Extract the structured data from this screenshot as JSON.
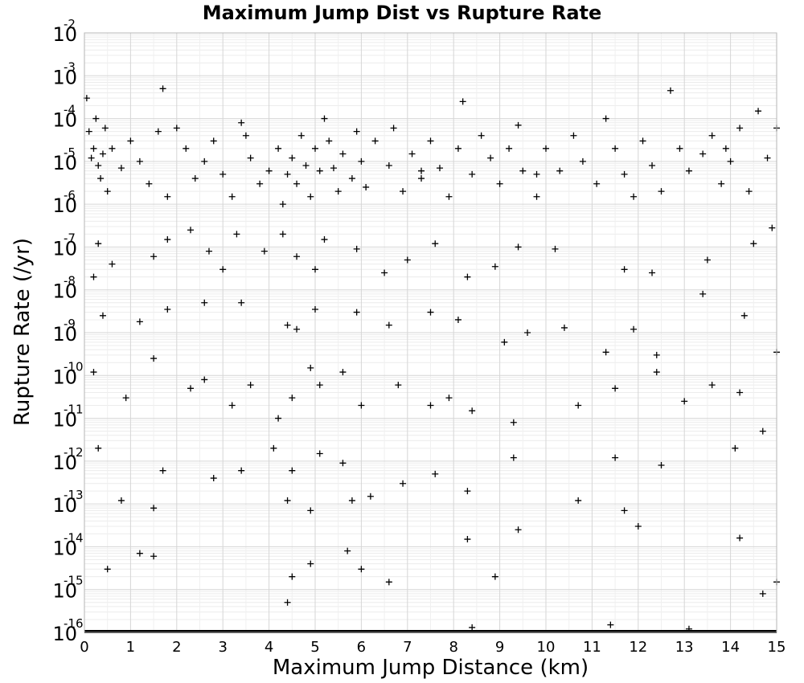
{
  "chart_data": {
    "type": "scatter",
    "title": "Maximum Jump Dist vs Rupture Rate",
    "xlabel": "Maximum Jump Distance (km)",
    "ylabel": "Rupture Rate (/yr)",
    "x_scale": "linear",
    "y_scale": "log",
    "xlim": [
      0,
      15
    ],
    "ylim": [
      1e-16,
      0.01
    ],
    "xticks": [
      0,
      1,
      2,
      3,
      4,
      5,
      6,
      7,
      8,
      9,
      10,
      11,
      12,
      13,
      14,
      15
    ],
    "yticks": [
      -16,
      -15,
      -14,
      -13,
      -12,
      -11,
      -10,
      -9,
      -8,
      -7,
      -6,
      -5,
      -4,
      -3,
      -2
    ],
    "ytick_base": "10",
    "grid": true,
    "marker": "+",
    "series": [
      {
        "points": [
          [
            0.05,
            0.0003
          ],
          [
            0.1,
            5e-05
          ],
          [
            0.15,
            1.2e-05
          ],
          [
            0.2,
            2e-05
          ],
          [
            0.25,
            0.0001
          ],
          [
            0.3,
            8e-06
          ],
          [
            0.35,
            4e-06
          ],
          [
            0.4,
            1.5e-05
          ],
          [
            0.45,
            6e-05
          ],
          [
            0.5,
            2e-06
          ],
          [
            0.6,
            2e-05
          ],
          [
            0.8,
            7e-06
          ],
          [
            1.0,
            3e-05
          ],
          [
            1.2,
            1e-05
          ],
          [
            1.4,
            3e-06
          ],
          [
            1.6,
            5e-05
          ],
          [
            1.7,
            0.0005
          ],
          [
            1.8,
            1.5e-06
          ],
          [
            2.0,
            6e-05
          ],
          [
            2.2,
            2e-05
          ],
          [
            2.4,
            4e-06
          ],
          [
            2.6,
            1e-05
          ],
          [
            2.8,
            3e-05
          ],
          [
            3.0,
            5e-06
          ],
          [
            3.2,
            1.5e-06
          ],
          [
            3.4,
            8e-05
          ],
          [
            3.5,
            4e-05
          ],
          [
            3.6,
            1.2e-05
          ],
          [
            3.8,
            3e-06
          ],
          [
            4.0,
            6e-06
          ],
          [
            4.2,
            2e-05
          ],
          [
            4.3,
            1e-06
          ],
          [
            4.4,
            5e-06
          ],
          [
            4.5,
            1.2e-05
          ],
          [
            4.6,
            3e-06
          ],
          [
            4.7,
            4e-05
          ],
          [
            4.8,
            8e-06
          ],
          [
            4.9,
            1.5e-06
          ],
          [
            5.0,
            2e-05
          ],
          [
            5.1,
            6e-06
          ],
          [
            5.2,
            0.0001
          ],
          [
            5.3,
            3e-05
          ],
          [
            5.4,
            7e-06
          ],
          [
            5.5,
            2e-06
          ],
          [
            5.6,
            1.5e-05
          ],
          [
            5.8,
            4e-06
          ],
          [
            5.9,
            5e-05
          ],
          [
            6.0,
            1e-05
          ],
          [
            6.1,
            2.5e-06
          ],
          [
            6.3,
            3e-05
          ],
          [
            6.6,
            8e-06
          ],
          [
            6.7,
            6e-05
          ],
          [
            6.9,
            2e-06
          ],
          [
            7.1,
            1.5e-05
          ],
          [
            7.3,
            4e-06
          ],
          [
            7.5,
            3e-05
          ],
          [
            7.7,
            7e-06
          ],
          [
            7.9,
            1.5e-06
          ],
          [
            8.1,
            2e-05
          ],
          [
            8.2,
            0.00025
          ],
          [
            8.4,
            5e-06
          ],
          [
            8.6,
            4e-05
          ],
          [
            8.8,
            1.2e-05
          ],
          [
            9.0,
            3e-06
          ],
          [
            9.2,
            2e-05
          ],
          [
            9.4,
            7e-05
          ],
          [
            9.5,
            6e-06
          ],
          [
            9.8,
            1.5e-06
          ],
          [
            10.0,
            2e-05
          ],
          [
            10.3,
            6e-06
          ],
          [
            10.6,
            4e-05
          ],
          [
            10.8,
            1e-05
          ],
          [
            11.1,
            3e-06
          ],
          [
            11.3,
            0.0001
          ],
          [
            11.5,
            2e-05
          ],
          [
            11.7,
            5e-06
          ],
          [
            11.9,
            1.5e-06
          ],
          [
            12.1,
            3e-05
          ],
          [
            12.3,
            8e-06
          ],
          [
            12.5,
            2e-06
          ],
          [
            12.7,
            0.00045
          ],
          [
            12.9,
            2e-05
          ],
          [
            13.1,
            6e-06
          ],
          [
            13.4,
            1.5e-05
          ],
          [
            13.6,
            4e-05
          ],
          [
            13.8,
            3e-06
          ],
          [
            14.0,
            1e-05
          ],
          [
            14.2,
            6e-05
          ],
          [
            14.4,
            2e-06
          ],
          [
            14.6,
            0.00015
          ],
          [
            14.8,
            1.2e-05
          ],
          [
            15.0,
            6e-05
          ],
          [
            0.3,
            1.2e-07
          ],
          [
            0.6,
            4e-08
          ],
          [
            1.5,
            6e-08
          ],
          [
            1.8,
            1.5e-07
          ],
          [
            2.3,
            2.5e-07
          ],
          [
            2.7,
            8e-08
          ],
          [
            3.0,
            3e-08
          ],
          [
            3.3,
            2e-07
          ],
          [
            3.9,
            8e-08
          ],
          [
            4.3,
            2e-07
          ],
          [
            4.6,
            6e-08
          ],
          [
            5.0,
            3e-08
          ],
          [
            5.2,
            1.5e-07
          ],
          [
            5.9,
            9e-08
          ],
          [
            6.5,
            2.5e-08
          ],
          [
            7.0,
            5e-08
          ],
          [
            7.6,
            1.2e-07
          ],
          [
            8.3,
            2e-08
          ],
          [
            8.9,
            3.5e-08
          ],
          [
            9.4,
            1e-07
          ],
          [
            10.2,
            9e-08
          ],
          [
            11.7,
            3e-08
          ],
          [
            12.3,
            2.5e-08
          ],
          [
            13.5,
            5e-08
          ],
          [
            14.5,
            1.2e-07
          ],
          [
            14.9,
            2.8e-07
          ],
          [
            0.2,
            2e-08
          ],
          [
            0.4,
            2.5e-09
          ],
          [
            1.2,
            1.8e-09
          ],
          [
            1.8,
            3.5e-09
          ],
          [
            2.6,
            5e-09
          ],
          [
            3.4,
            5e-09
          ],
          [
            4.4,
            1.5e-09
          ],
          [
            4.6,
            1.2e-09
          ],
          [
            5.0,
            3.5e-09
          ],
          [
            5.9,
            3e-09
          ],
          [
            6.6,
            1.5e-09
          ],
          [
            7.5,
            3e-09
          ],
          [
            8.1,
            2e-09
          ],
          [
            9.1,
            6e-10
          ],
          [
            9.6,
            1e-09
          ],
          [
            10.4,
            1.3e-09
          ],
          [
            11.3,
            3.5e-10
          ],
          [
            11.9,
            1.2e-09
          ],
          [
            12.4,
            3e-10
          ],
          [
            13.4,
            8e-09
          ],
          [
            14.3,
            2.5e-09
          ],
          [
            15.0,
            3.5e-10
          ],
          [
            0.2,
            1.2e-10
          ],
          [
            0.9,
            3e-11
          ],
          [
            1.5,
            2.5e-10
          ],
          [
            2.3,
            5e-11
          ],
          [
            2.6,
            8e-11
          ],
          [
            3.2,
            2e-11
          ],
          [
            3.6,
            6e-11
          ],
          [
            4.2,
            1e-11
          ],
          [
            4.5,
            3e-11
          ],
          [
            4.9,
            1.5e-10
          ],
          [
            5.1,
            6e-11
          ],
          [
            5.6,
            1.2e-10
          ],
          [
            6.0,
            2e-11
          ],
          [
            6.8,
            6e-11
          ],
          [
            7.5,
            2e-11
          ],
          [
            7.9,
            3e-11
          ],
          [
            8.4,
            1.5e-11
          ],
          [
            9.3,
            8e-12
          ],
          [
            10.7,
            2e-11
          ],
          [
            11.5,
            5e-11
          ],
          [
            12.4,
            1.2e-10
          ],
          [
            13.0,
            2.5e-11
          ],
          [
            13.6,
            6e-11
          ],
          [
            14.2,
            4e-11
          ],
          [
            14.7,
            5e-12
          ],
          [
            0.3,
            2e-12
          ],
          [
            1.7,
            6e-13
          ],
          [
            2.8,
            4e-13
          ],
          [
            3.4,
            6e-13
          ],
          [
            4.1,
            2e-12
          ],
          [
            4.5,
            6e-13
          ],
          [
            5.1,
            1.5e-12
          ],
          [
            5.6,
            9e-13
          ],
          [
            6.2,
            1.5e-13
          ],
          [
            6.9,
            3e-13
          ],
          [
            7.6,
            5e-13
          ],
          [
            8.3,
            2e-13
          ],
          [
            9.3,
            1.2e-12
          ],
          [
            11.5,
            1.2e-12
          ],
          [
            12.5,
            8e-13
          ],
          [
            14.1,
            2e-12
          ],
          [
            0.8,
            1.2e-13
          ],
          [
            1.5,
            8e-14
          ],
          [
            4.4,
            1.2e-13
          ],
          [
            4.9,
            7e-14
          ],
          [
            5.8,
            1.2e-13
          ],
          [
            8.3,
            1.5e-14
          ],
          [
            9.4,
            2.5e-14
          ],
          [
            10.7,
            1.2e-13
          ],
          [
            11.7,
            7e-14
          ],
          [
            12.0,
            3e-14
          ],
          [
            14.2,
            1.6e-14
          ],
          [
            0.5,
            3e-15
          ],
          [
            1.2,
            7e-15
          ],
          [
            1.5,
            6e-15
          ],
          [
            4.9,
            4e-15
          ],
          [
            5.7,
            8e-15
          ],
          [
            6.0,
            3e-15
          ],
          [
            4.5,
            2e-15
          ],
          [
            6.6,
            1.5e-15
          ],
          [
            8.9,
            2e-15
          ],
          [
            14.7,
            8e-16
          ],
          [
            15.0,
            1.5e-15
          ],
          [
            4.4,
            5e-16
          ],
          [
            8.4,
            1.3e-16
          ],
          [
            11.4,
            1.5e-16
          ],
          [
            13.1,
            1.2e-16
          ],
          [
            9.8,
            5e-06
          ],
          [
            13.9,
            2e-05
          ],
          [
            7.3,
            6e-06
          ]
        ]
      }
    ]
  }
}
